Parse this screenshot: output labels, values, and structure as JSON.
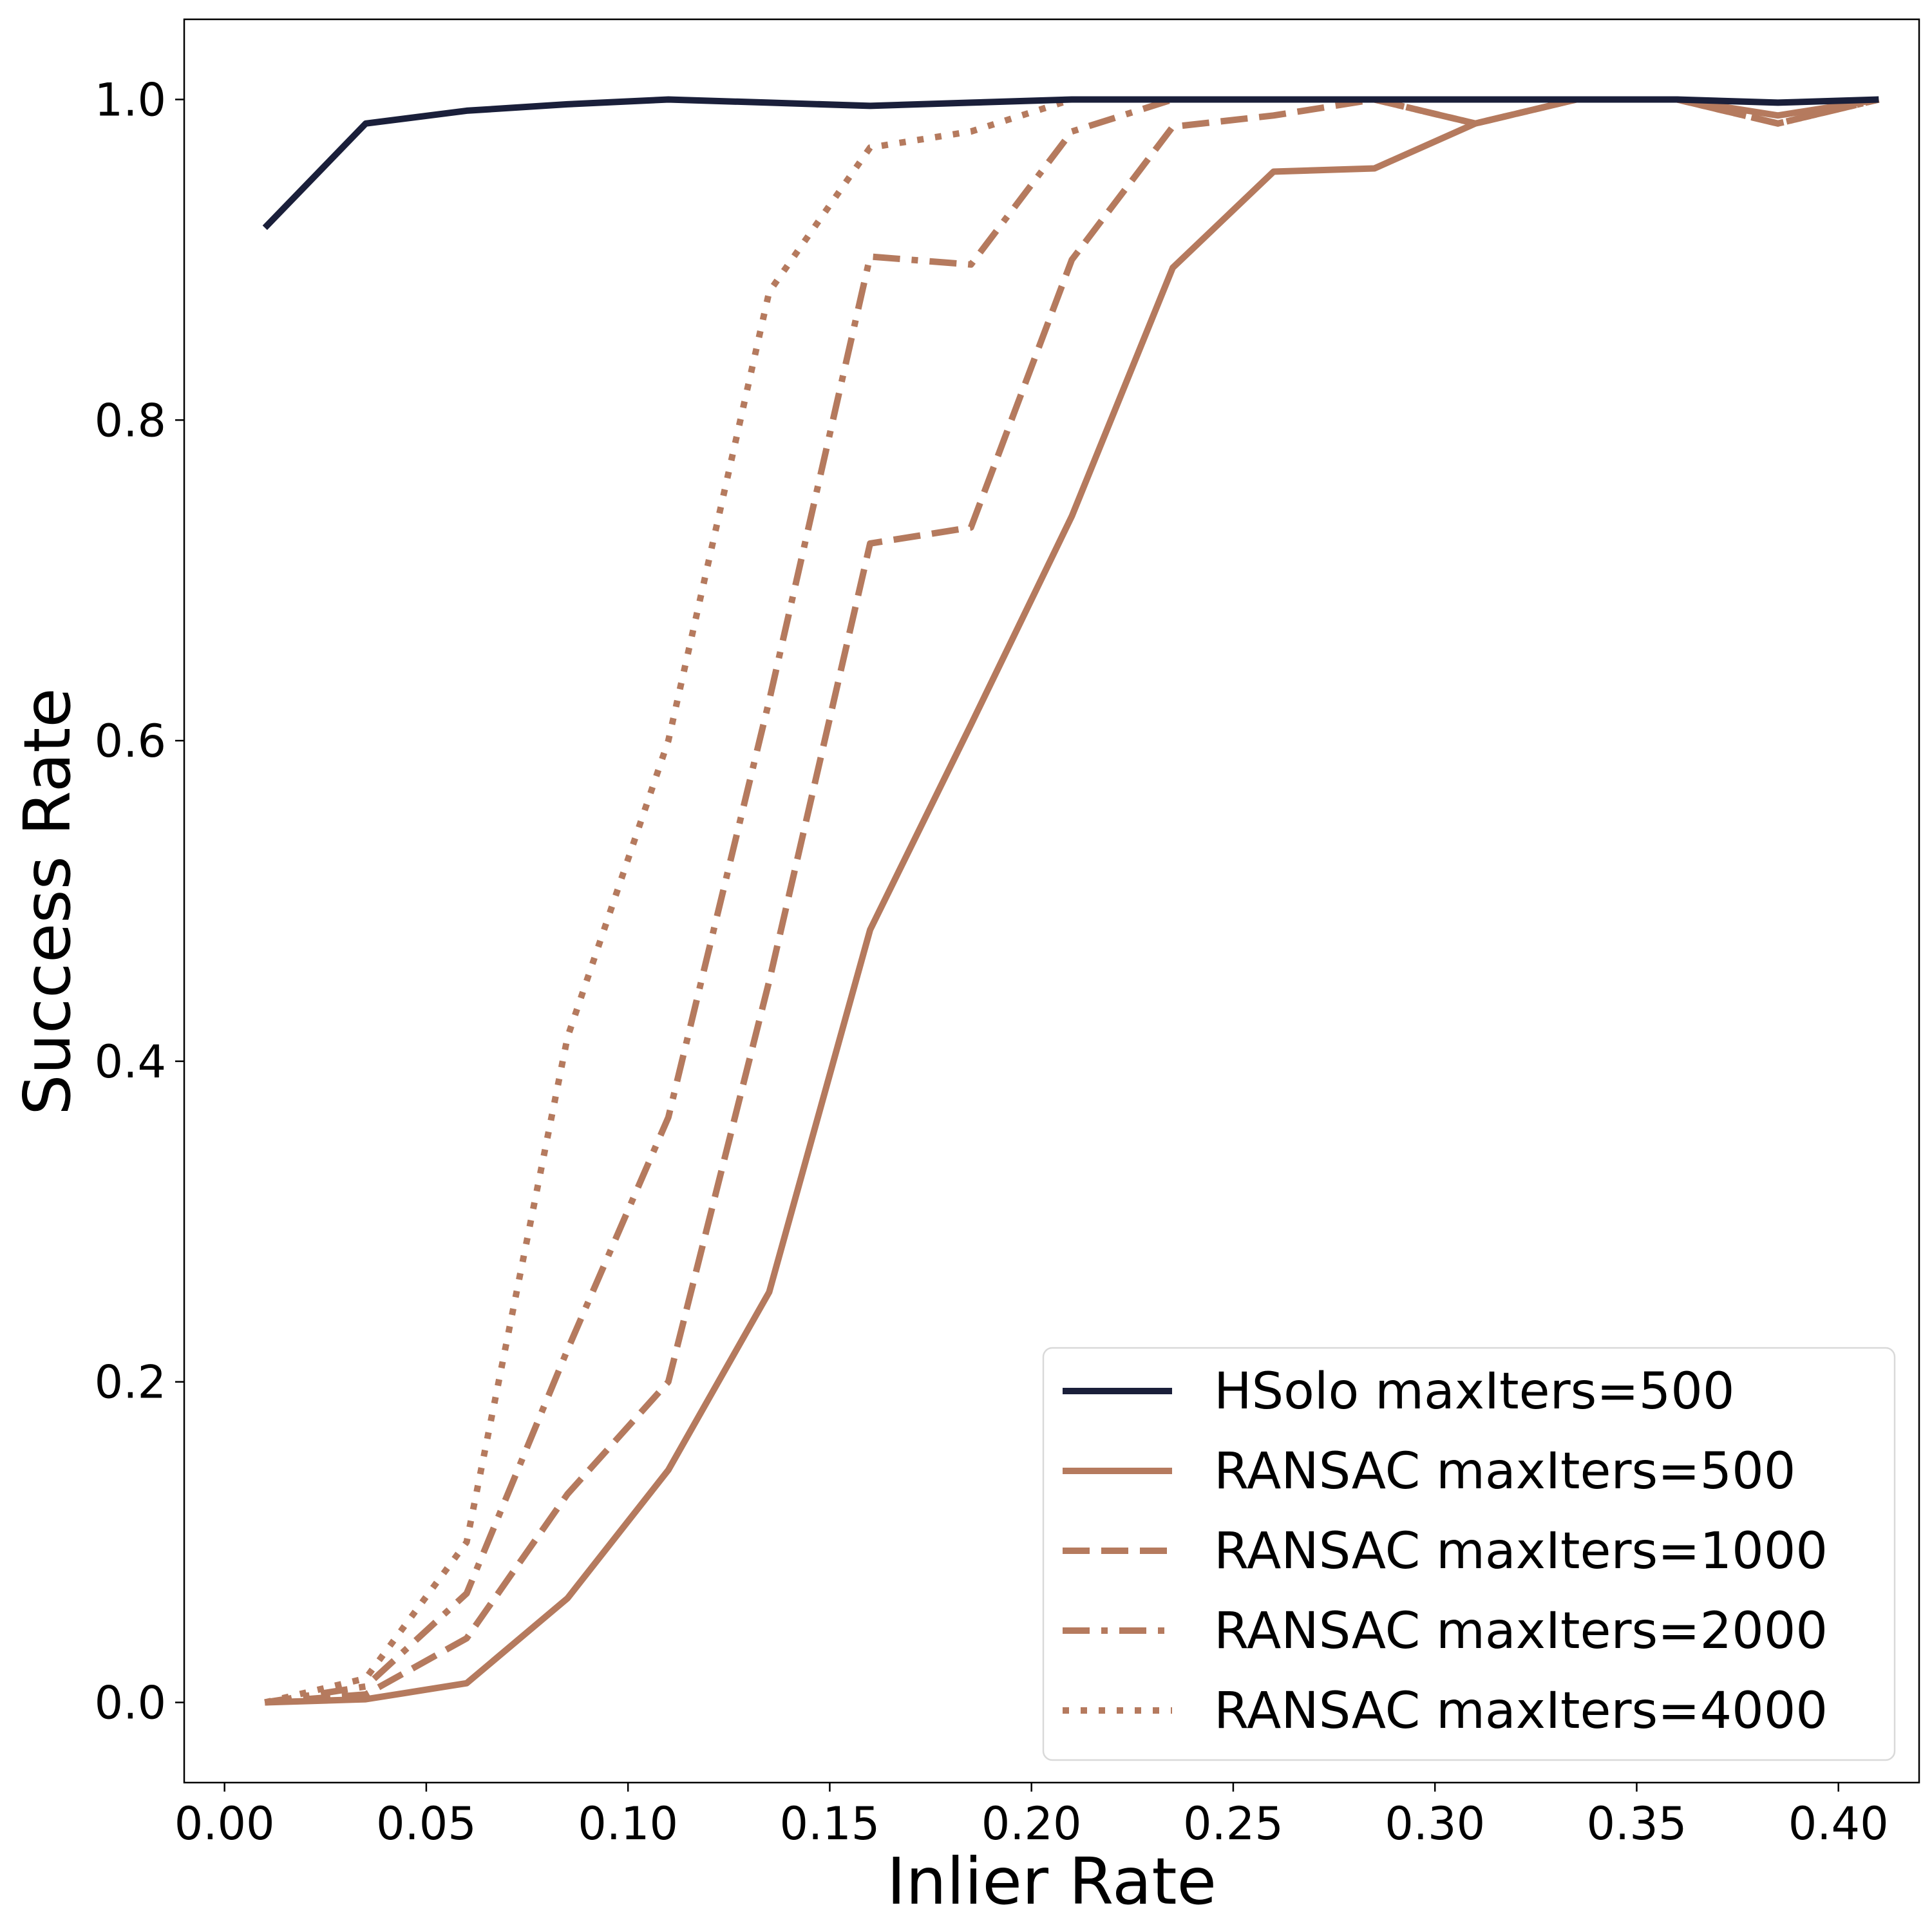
{
  "colors": {
    "hsolo": "#1a1f3a",
    "ransac": "#b57a5e",
    "axis": "#000000",
    "legend_border": "#d9d9d9"
  },
  "chart_data": {
    "type": "line",
    "title": "",
    "xlabel": "Inlier Rate",
    "ylabel": "Success Rate",
    "xlim": [
      -0.01,
      0.42
    ],
    "ylim": [
      -0.05,
      1.05
    ],
    "xticks": [
      0.0,
      0.05,
      0.1,
      0.15,
      0.2,
      0.25,
      0.3,
      0.35,
      0.4
    ],
    "xtick_labels": [
      "0.00",
      "0.05",
      "0.10",
      "0.15",
      "0.20",
      "0.25",
      "0.30",
      "0.35",
      "0.40"
    ],
    "yticks": [
      0.0,
      0.2,
      0.4,
      0.6,
      0.8,
      1.0
    ],
    "ytick_labels": [
      "0.0",
      "0.2",
      "0.4",
      "0.6",
      "0.8",
      "1.0"
    ],
    "grid": false,
    "legend_position": "lower-right",
    "x": [
      0.01,
      0.035,
      0.06,
      0.085,
      0.11,
      0.135,
      0.16,
      0.185,
      0.21,
      0.235,
      0.26,
      0.285,
      0.31,
      0.335,
      0.36,
      0.385,
      0.41
    ],
    "series": [
      {
        "name": "HSolo maxIters=500",
        "color": "hsolo",
        "dash": "solid",
        "values": [
          0.92,
          0.985,
          0.993,
          0.997,
          1.0,
          0.998,
          0.996,
          0.998,
          1.0,
          1.0,
          1.0,
          1.0,
          1.0,
          1.0,
          1.0,
          0.998,
          1.0
        ]
      },
      {
        "name": "RANSAC maxIters=500",
        "color": "ransac",
        "dash": "solid",
        "values": [
          0.0,
          0.002,
          0.012,
          0.065,
          0.145,
          0.256,
          0.482,
          0.61,
          0.74,
          0.895,
          0.955,
          0.957,
          0.985,
          1.0,
          1.0,
          0.99,
          1.0
        ]
      },
      {
        "name": "RANSAC maxIters=1000",
        "color": "ransac",
        "dash": "dashed",
        "values": [
          0.0,
          0.005,
          0.04,
          0.13,
          0.2,
          0.45,
          0.723,
          0.733,
          0.9,
          0.983,
          0.99,
          1.0,
          0.985,
          1.0,
          1.0,
          0.985,
          1.0
        ]
      },
      {
        "name": "RANSAC maxIters=2000",
        "color": "ransac",
        "dash": "dashdot",
        "values": [
          0.0,
          0.01,
          0.068,
          0.22,
          0.365,
          0.625,
          0.902,
          0.897,
          0.98,
          1.0,
          1.0,
          1.0,
          0.985,
          1.0,
          1.0,
          0.985,
          1.0
        ]
      },
      {
        "name": "RANSAC maxIters=4000",
        "color": "ransac",
        "dash": "dotted",
        "values": [
          0.0,
          0.015,
          0.1,
          0.415,
          0.6,
          0.88,
          0.97,
          0.98,
          1.0,
          1.0,
          1.0,
          1.0,
          0.985,
          1.0,
          1.0,
          0.985,
          1.0
        ]
      }
    ]
  }
}
